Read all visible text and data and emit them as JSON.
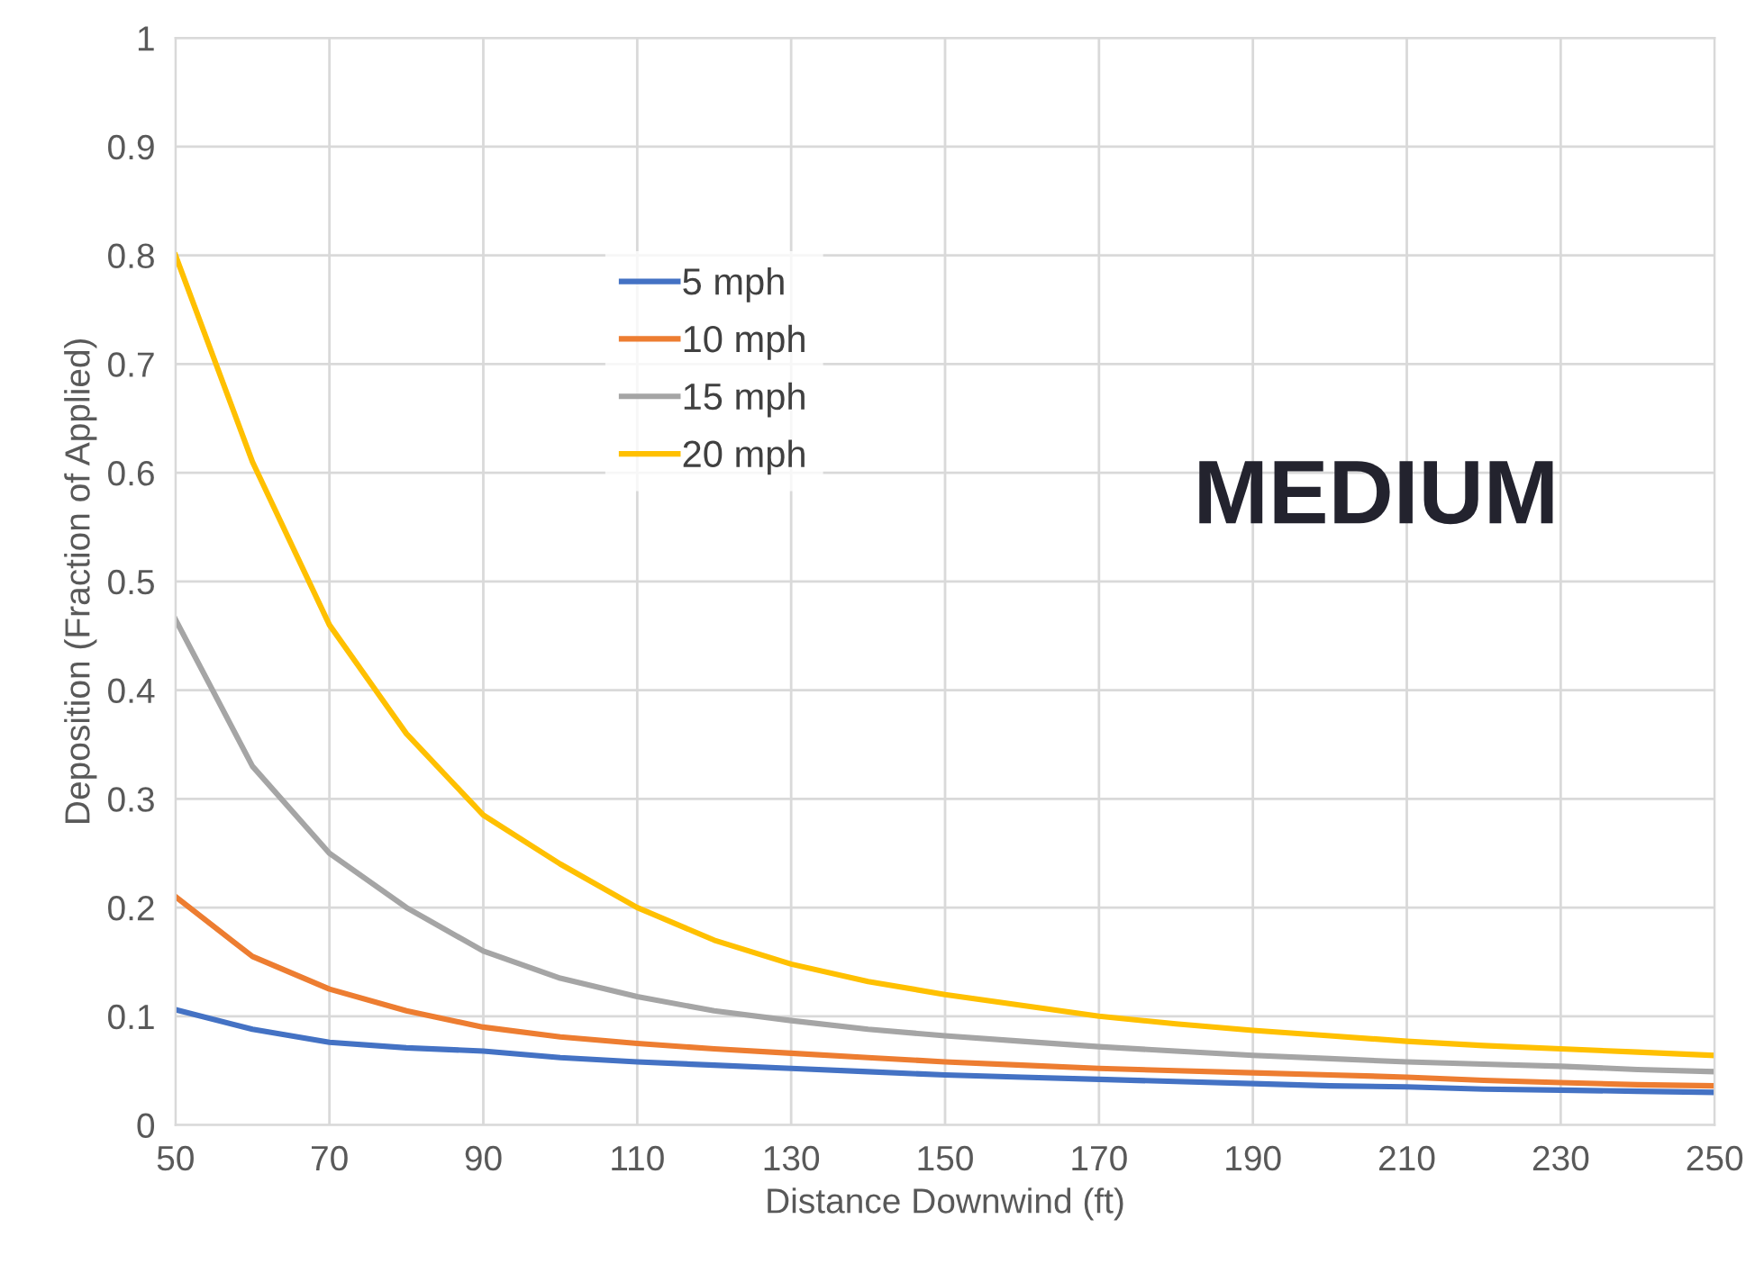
{
  "chart_data": {
    "type": "line",
    "xlabel": "Distance Downwind (ft)",
    "ylabel": "Deposition (Fraction of Applied)",
    "annotations": [
      "MEDIUM"
    ],
    "x": [
      50,
      60,
      70,
      80,
      90,
      100,
      110,
      120,
      130,
      140,
      150,
      160,
      170,
      180,
      190,
      200,
      210,
      220,
      230,
      240,
      250
    ],
    "series": [
      {
        "name": "5 mph",
        "color": "#4472c4",
        "values": [
          0.106,
          0.088,
          0.076,
          0.071,
          0.068,
          0.062,
          0.058,
          0.055,
          0.052,
          0.049,
          0.046,
          0.044,
          0.042,
          0.04,
          0.038,
          0.036,
          0.035,
          0.033,
          0.032,
          0.031,
          0.03
        ]
      },
      {
        "name": "10 mph",
        "color": "#ed7d31",
        "values": [
          0.21,
          0.155,
          0.125,
          0.105,
          0.09,
          0.081,
          0.075,
          0.07,
          0.066,
          0.062,
          0.058,
          0.055,
          0.052,
          0.05,
          0.048,
          0.046,
          0.044,
          0.041,
          0.039,
          0.037,
          0.036
        ]
      },
      {
        "name": "15 mph",
        "color": "#a5a5a5",
        "values": [
          0.465,
          0.33,
          0.25,
          0.2,
          0.16,
          0.135,
          0.118,
          0.105,
          0.096,
          0.088,
          0.082,
          0.077,
          0.072,
          0.068,
          0.064,
          0.061,
          0.058,
          0.056,
          0.054,
          0.051,
          0.049
        ]
      },
      {
        "name": "20 mph",
        "color": "#ffc000",
        "values": [
          0.8,
          0.61,
          0.46,
          0.36,
          0.285,
          0.24,
          0.2,
          0.17,
          0.148,
          0.132,
          0.12,
          0.11,
          0.1,
          0.093,
          0.087,
          0.082,
          0.077,
          0.073,
          0.07,
          0.067,
          0.064
        ]
      }
    ],
    "xlim": [
      50,
      250
    ],
    "xticks": [
      50,
      70,
      90,
      110,
      130,
      150,
      170,
      190,
      210,
      230,
      250
    ],
    "ylim": [
      0,
      1
    ],
    "yticks": [
      0,
      0.1,
      0.2,
      0.3,
      0.4,
      0.5,
      0.6,
      0.7,
      0.8,
      0.9,
      1
    ],
    "grid": true,
    "legend": "top",
    "marker": "none",
    "line_style": "solid"
  }
}
